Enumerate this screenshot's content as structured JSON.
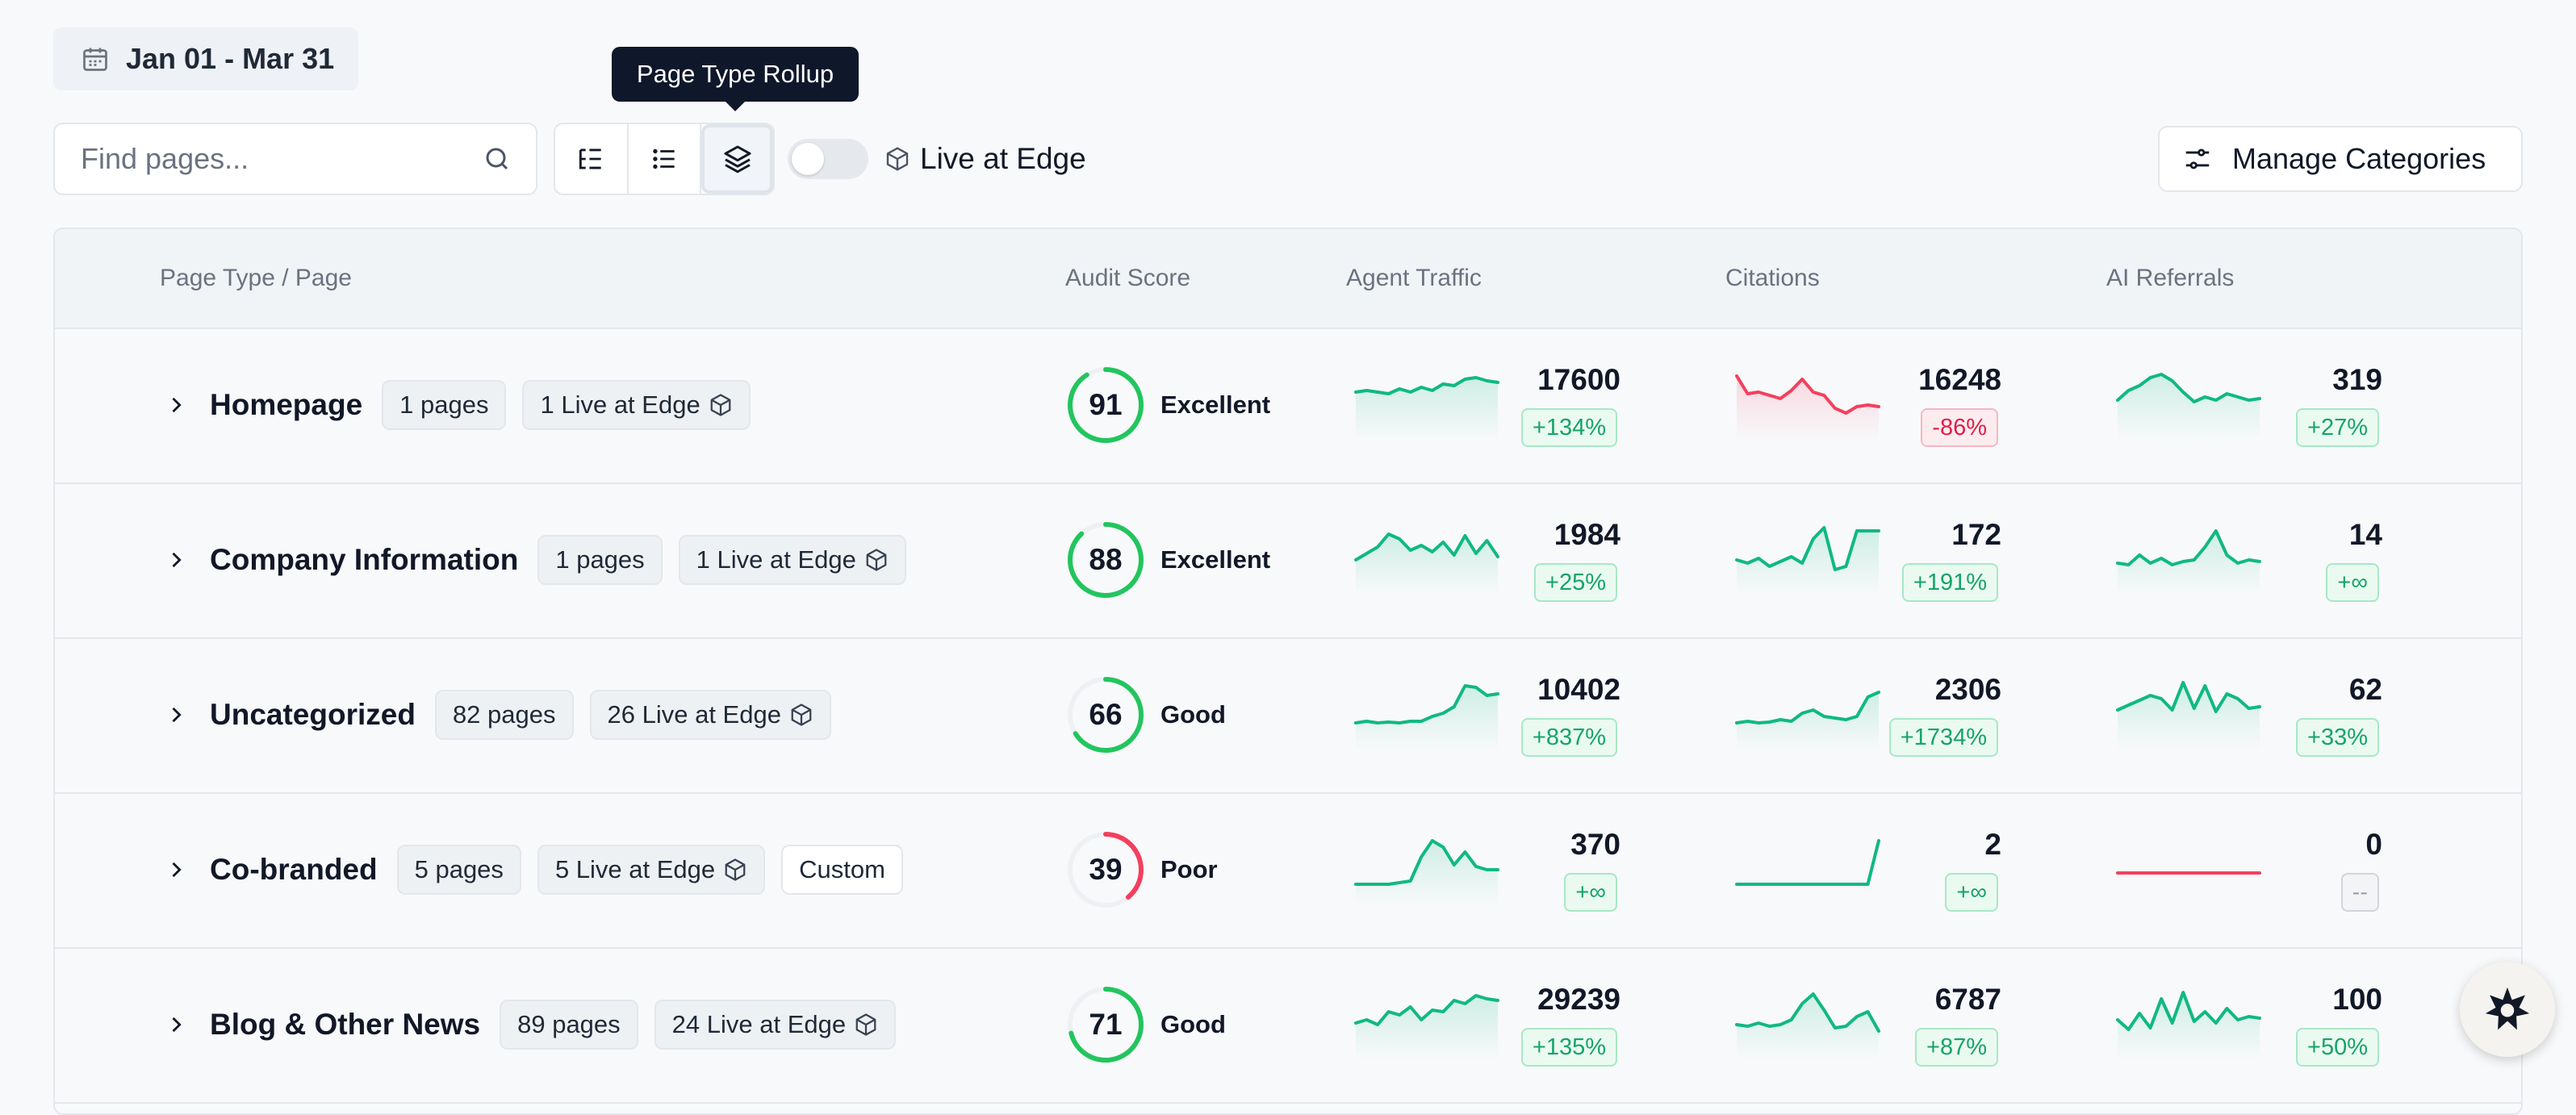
{
  "date_range": {
    "label": "Jan 01 - Mar 31",
    "icon": "calendar-icon"
  },
  "tooltip": {
    "text": "Page Type Rollup"
  },
  "search": {
    "placeholder": "Find pages...",
    "value": ""
  },
  "view_toggle": {
    "buttons": [
      "tree-view",
      "list-view",
      "rollup-view"
    ],
    "active": "rollup-view"
  },
  "live_at_edge": {
    "label": "Live at Edge",
    "enabled": false
  },
  "manage_categories": {
    "label": "Manage Categories"
  },
  "table": {
    "headers": {
      "page": "Page Type / Page",
      "audit": "Audit Score",
      "traffic": "Agent Traffic",
      "citations": "Citations",
      "referrals": "AI Referrals"
    },
    "rows": [
      {
        "name": "Homepage",
        "pages": "1 pages",
        "live": "1 Live at Edge",
        "custom": "",
        "score": 91,
        "score_label": "Excellent",
        "score_color": "#22c55e",
        "traffic": {
          "value": "17600",
          "delta": "+134%",
          "trend": "pos",
          "spark": [
            30,
            28,
            30,
            32,
            26,
            30,
            24,
            28,
            20,
            22,
            14,
            12,
            16,
            18
          ]
        },
        "citations": {
          "value": "16248",
          "delta": "-86%",
          "trend": "neg",
          "spark": [
            10,
            32,
            30,
            34,
            38,
            28,
            14,
            30,
            34,
            50,
            56,
            48,
            46,
            48
          ]
        },
        "referrals": {
          "value": "319",
          "delta": "+27%",
          "trend": "pos",
          "spark": [
            40,
            28,
            22,
            12,
            8,
            16,
            30,
            42,
            36,
            40,
            32,
            36,
            40,
            38
          ]
        }
      },
      {
        "name": "Company Information",
        "pages": "1 pages",
        "live": "1 Live at Edge",
        "custom": "",
        "score": 88,
        "score_label": "Excellent",
        "score_color": "#22c55e",
        "traffic": {
          "value": "1984",
          "delta": "+25%",
          "trend": "pos",
          "spark": [
            46,
            38,
            30,
            14,
            20,
            34,
            28,
            36,
            24,
            40,
            16,
            38,
            22,
            42
          ]
        },
        "citations": {
          "value": "172",
          "delta": "+191%",
          "trend": "pos",
          "spark": [
            46,
            50,
            44,
            54,
            48,
            42,
            50,
            20,
            6,
            58,
            54,
            10,
            10,
            10
          ]
        },
        "referrals": {
          "value": "14",
          "delta": "+∞",
          "trend": "pos",
          "spark": [
            50,
            52,
            40,
            50,
            44,
            52,
            48,
            46,
            30,
            10,
            40,
            50,
            46,
            48
          ]
        }
      },
      {
        "name": "Uncategorized",
        "pages": "82 pages",
        "live": "26 Live at Edge",
        "custom": "",
        "score": 66,
        "score_label": "Good",
        "score_color": "#22c55e",
        "traffic": {
          "value": "10402",
          "delta": "+837%",
          "trend": "pos",
          "spark": [
            56,
            54,
            56,
            55,
            56,
            54,
            54,
            48,
            44,
            36,
            10,
            12,
            22,
            20
          ]
        },
        "citations": {
          "value": "2306",
          "delta": "+1734%",
          "trend": "pos",
          "spark": [
            56,
            54,
            56,
            55,
            52,
            54,
            44,
            40,
            48,
            50,
            52,
            48,
            24,
            18
          ]
        },
        "referrals": {
          "value": "62",
          "delta": "+33%",
          "trend": "pos",
          "spark": [
            40,
            34,
            28,
            22,
            26,
            40,
            6,
            38,
            10,
            42,
            20,
            26,
            38,
            36
          ]
        }
      },
      {
        "name": "Co-branded",
        "pages": "5 pages",
        "live": "5 Live at Edge",
        "custom": "Custom",
        "score": 39,
        "score_label": "Poor",
        "score_color": "#f43f5e",
        "traffic": {
          "value": "370",
          "delta": "+∞",
          "trend": "pos",
          "spark": [
            64,
            64,
            64,
            64,
            62,
            60,
            30,
            10,
            18,
            40,
            24,
            42,
            46,
            46
          ]
        },
        "citations": {
          "value": "2",
          "delta": "+∞",
          "trend": "pos",
          "spark": [
            64,
            64,
            64,
            64,
            64,
            64,
            64,
            64,
            64,
            64,
            64,
            64,
            64,
            10
          ]
        },
        "referrals": {
          "value": "0",
          "delta": "--",
          "trend": "neu",
          "spark": [
            50,
            50,
            50,
            50,
            50,
            50,
            50,
            50,
            50,
            50,
            50,
            50,
            50,
            50
          ]
        }
      },
      {
        "name": "Blog & Other News",
        "pages": "89 pages",
        "live": "24 Live at Edge",
        "custom": "",
        "score": 71,
        "score_label": "Good",
        "score_color": "#22c55e",
        "traffic": {
          "value": "29239",
          "delta": "+135%",
          "trend": "pos",
          "spark": [
            44,
            40,
            46,
            30,
            34,
            24,
            40,
            28,
            30,
            16,
            20,
            10,
            14,
            16
          ]
        },
        "citations": {
          "value": "6787",
          "delta": "+87%",
          "trend": "pos",
          "spark": [
            46,
            48,
            44,
            48,
            46,
            40,
            20,
            8,
            28,
            50,
            48,
            36,
            30,
            54
          ]
        },
        "referrals": {
          "value": "100",
          "delta": "+50%",
          "trend": "pos",
          "spark": [
            40,
            52,
            32,
            50,
            14,
            44,
            6,
            42,
            30,
            44,
            26,
            40,
            36,
            38
          ]
        }
      }
    ]
  }
}
